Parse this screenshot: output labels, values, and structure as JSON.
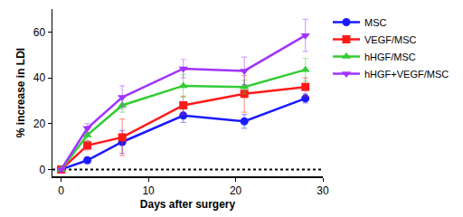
{
  "chart_data": {
    "type": "line",
    "x_label": "Days after surgery",
    "y_label": "% increase in LDI",
    "x": [
      0,
      3,
      7,
      14,
      21,
      28
    ],
    "series": [
      {
        "name": "MSC",
        "color": "#1a1aff",
        "marker": "circle",
        "values": [
          0,
          4,
          12,
          23.5,
          21,
          31
        ],
        "errors": [
          0,
          1,
          5,
          3,
          3,
          2
        ]
      },
      {
        "name": "VEGF/MSC",
        "color": "#ff1a1a",
        "marker": "square",
        "values": [
          0,
          10.5,
          14,
          28,
          33,
          36
        ],
        "errors": [
          0,
          2,
          8,
          4,
          8,
          4
        ]
      },
      {
        "name": "hHGF/MSC",
        "color": "#33cc33",
        "marker": "triangle-up",
        "values": [
          0,
          15,
          28,
          36.5,
          36,
          43.5
        ],
        "errors": [
          0,
          3,
          3,
          5,
          3,
          5
        ]
      },
      {
        "name": "hHGF+VEGF/MSC",
        "color": "#a033ff",
        "marker": "triangle-down",
        "values": [
          0,
          18,
          31.5,
          44,
          43,
          58.5
        ],
        "errors": [
          0,
          2,
          5,
          4,
          6,
          7
        ]
      }
    ],
    "hline": 0,
    "xlim": [
      -1,
      30
    ],
    "xticks": [
      0,
      10,
      20,
      30
    ],
    "ylim": [
      -3,
      70
    ],
    "yticks": [
      0,
      20,
      40,
      60
    ],
    "grid": false,
    "legend": "right"
  }
}
